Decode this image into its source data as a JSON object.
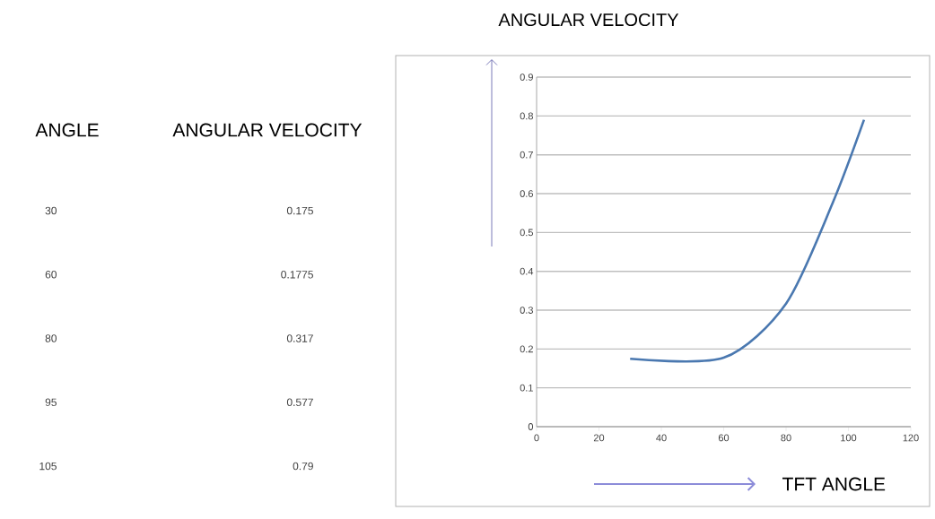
{
  "chart_data": [
    {
      "type": "other",
      "annotations": [
        "ANGLE",
        "ANGULAR VELOCITY",
        "30",
        "0.175",
        "60",
        "0.1775",
        "80",
        "0.317",
        "95",
        "0.577",
        "105",
        "0.79"
      ]
    },
    {
      "type": "line",
      "title": "ANGULAR VELOCITY",
      "xlabel": "TFT ANGLE",
      "x": [
        30,
        60,
        80,
        95,
        105
      ],
      "series": [
        {
          "color": "#4a78b0",
          "values": [
            0.175,
            0.1775,
            0.317,
            0.577,
            0.79
          ]
        }
      ],
      "xlim": [
        0,
        120
      ],
      "xticks": [
        0,
        20,
        40,
        60,
        80,
        100,
        120
      ],
      "ylim": [
        0,
        0.9
      ],
      "yticks": [
        0,
        0.1,
        0.2,
        0.3,
        0.4,
        0.5,
        0.6,
        0.7,
        0.8,
        0.9
      ],
      "grid": "y",
      "marker": "none",
      "line_style": "solid"
    }
  ]
}
